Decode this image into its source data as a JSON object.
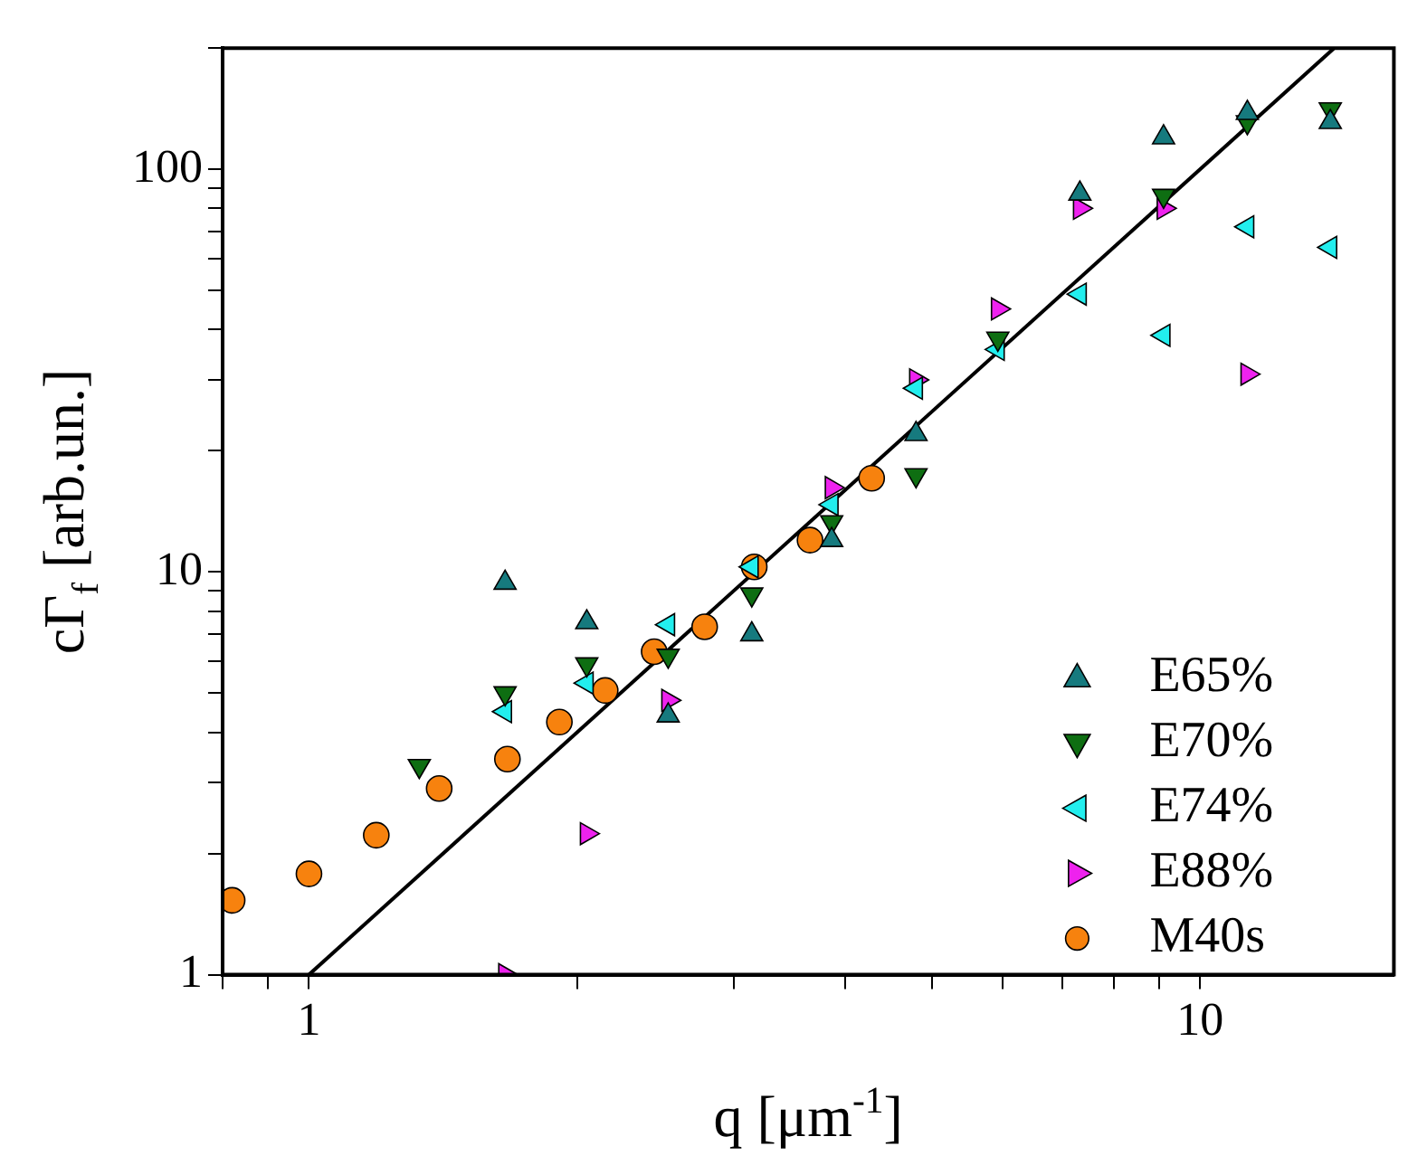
{
  "chart_data": {
    "type": "scatter",
    "xlabel": "q [μm$^{-1}$]",
    "ylabel": "cΓ$_{f}$ [arb.un.]",
    "log": "xy",
    "grid": false,
    "legend": "bottom right",
    "xlim": [
      0.8,
      16.5
    ],
    "ylim": [
      1,
      200
    ],
    "xticks": [
      {
        "value": 0.8,
        "label": null
      },
      {
        "value": 0.9,
        "label": null
      },
      1,
      {
        "value": 2,
        "label": null
      },
      {
        "value": 3,
        "label": null
      },
      {
        "value": 4,
        "label": null
      },
      {
        "value": 5,
        "label": null
      },
      {
        "value": 6,
        "label": null
      },
      {
        "value": 7,
        "label": null
      },
      {
        "value": 8,
        "label": null
      },
      {
        "value": 9,
        "label": null
      },
      10
    ],
    "yticks": [
      1,
      {
        "value": 2,
        "label": null
      },
      {
        "value": 3,
        "label": null
      },
      {
        "value": 4,
        "label": null
      },
      {
        "value": 5,
        "label": null
      },
      {
        "value": 6,
        "label": null
      },
      {
        "value": 7,
        "label": null
      },
      {
        "value": 8,
        "label": null
      },
      {
        "value": 9,
        "label": null
      },
      10,
      {
        "value": 20,
        "label": null
      },
      {
        "value": 30,
        "label": null
      },
      {
        "value": 40,
        "label": null
      },
      {
        "value": 50,
        "label": null
      },
      {
        "value": 60,
        "label": null
      },
      {
        "value": 70,
        "label": null
      },
      {
        "value": 80,
        "label": null
      },
      {
        "value": 90,
        "label": null
      },
      100,
      {
        "value": 200,
        "label": null
      }
    ],
    "series": [
      {
        "name": "E65%",
        "color": "#167a7e",
        "marker": "triangle",
        "x": [
          1.66,
          2.05,
          2.53,
          3.14,
          3.86,
          4.8,
          7.33,
          9.1,
          11.3,
          14.0
        ],
        "values": [
          9.4,
          7.5,
          4.4,
          7.0,
          12,
          22,
          87,
          120,
          138,
          131
        ]
      },
      {
        "name": "E70%",
        "color": "#0e6e12",
        "marker": "triangle",
        "x": [
          1.33,
          1.66,
          2.05,
          2.53,
          3.14,
          3.86,
          4.8,
          5.93,
          9.1,
          11.3,
          14.0
        ],
        "values": [
          3.3,
          5.0,
          5.9,
          6.2,
          8.8,
          13.3,
          17.4,
          38,
          86,
          131,
          141
        ]
      },
      {
        "name": "E74%",
        "color": "#22eeee",
        "marker": "triangle",
        "x": [
          1.66,
          2.05,
          2.53,
          3.14,
          3.86,
          4.8,
          5.93,
          7.33,
          9.1,
          11.3,
          14.0
        ],
        "values": [
          4.5,
          5.3,
          7.4,
          10.3,
          14.7,
          28.6,
          35.7,
          49,
          38.7,
          72,
          64
        ]
      },
      {
        "name": "E88%",
        "color": "#ee22ee",
        "marker": "triangle",
        "x": [
          1.66,
          2.05,
          2.53,
          3.14,
          3.86,
          4.8,
          5.93,
          7.33,
          9.1,
          11.3
        ],
        "values": [
          1.0,
          2.24,
          4.8,
          null,
          16.2,
          30,
          45,
          80,
          80,
          31
        ]
      },
      {
        "name": "M40s",
        "color": "#f7820e",
        "marker": "circle",
        "x": [
          0.82,
          1.0,
          1.19,
          1.4,
          1.67,
          1.91,
          2.15,
          2.44,
          2.78,
          3.16,
          3.65,
          4.28
        ],
        "values": [
          1.53,
          1.78,
          2.22,
          2.9,
          3.43,
          4.24,
          5.08,
          6.34,
          7.31,
          10.3,
          12,
          17.1
        ]
      },
      {
        "type": "line",
        "color": "#000000",
        "marker": "none",
        "line_style": "solid",
        "x": [
          1,
          14.14
        ],
        "values": [
          1,
          200
        ]
      }
    ]
  }
}
